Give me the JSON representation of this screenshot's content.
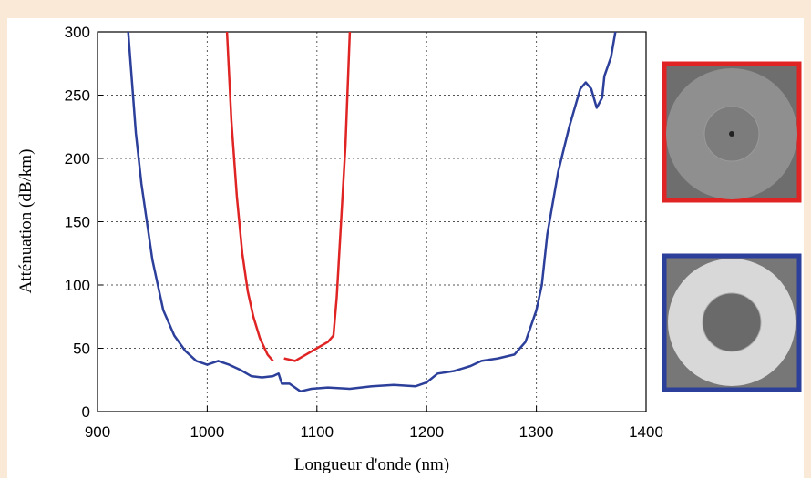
{
  "chart_data": {
    "type": "line",
    "xlabel": "Longueur d'onde (nm)",
    "ylabel": "Atténuation (dB/km)",
    "xlim": [
      900,
      1400
    ],
    "ylim": [
      0,
      300
    ],
    "xticks": [
      900,
      1000,
      1100,
      1200,
      1300,
      1400
    ],
    "yticks": [
      0,
      50,
      100,
      150,
      200,
      250,
      300
    ],
    "grid": true,
    "series": [
      {
        "color": "#2c3f9a",
        "x": [
          928,
          935,
          940,
          945,
          950,
          955,
          960,
          965,
          970,
          980,
          990,
          1000,
          1010,
          1020,
          1030,
          1040,
          1050,
          1060,
          1065,
          1068,
          1075,
          1085,
          1095,
          1110,
          1130,
          1150,
          1170,
          1190,
          1200,
          1210,
          1225,
          1240,
          1250,
          1265,
          1280,
          1290,
          1300,
          1305,
          1310,
          1320,
          1330,
          1340,
          1345,
          1350,
          1355,
          1360,
          1362,
          1368,
          1372
        ],
        "values": [
          300,
          220,
          180,
          150,
          120,
          100,
          80,
          70,
          60,
          48,
          40,
          37,
          40,
          37,
          33,
          28,
          27,
          28,
          30,
          22,
          22,
          16,
          18,
          19,
          18,
          20,
          21,
          20,
          23,
          30,
          32,
          36,
          40,
          42,
          45,
          55,
          80,
          100,
          140,
          190,
          225,
          255,
          260,
          255,
          240,
          248,
          265,
          280,
          300
        ]
      },
      {
        "color": "#e02424",
        "x": [
          1018,
          1022,
          1027,
          1032,
          1037,
          1042,
          1048,
          1055,
          1060,
          1065,
          1070,
          1080,
          1090,
          1100,
          1110,
          1115,
          1118,
          1122,
          1126,
          1130
        ],
        "values": [
          300,
          230,
          170,
          125,
          95,
          75,
          58,
          45,
          40,
          null,
          42,
          40,
          45,
          50,
          55,
          60,
          90,
          150,
          210,
          300
        ]
      }
    ]
  }
}
